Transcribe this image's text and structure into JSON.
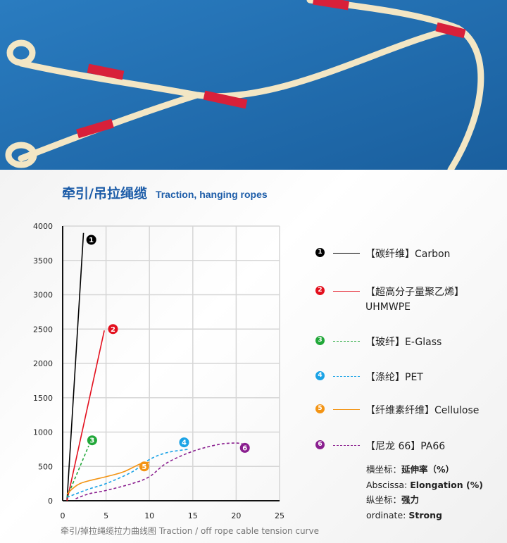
{
  "header": {
    "title_zh": "牵引/吊拉绳缆",
    "title_en": "Traction, hanging ropes"
  },
  "photo": {
    "background": "#1f6fb5",
    "rope": "#f3e6c4",
    "sleeve": "#d8203a"
  },
  "chart_data": {
    "type": "line",
    "title": "",
    "caption": "牵引/掉拉绳缆拉力曲线图  Traction / off rope cable tension curve",
    "xlabel": "",
    "ylabel": "",
    "xlim": [
      0,
      25
    ],
    "ylim": [
      0,
      4000
    ],
    "xticks": [
      "0",
      "5",
      "10",
      "15",
      "20",
      "25"
    ],
    "yticks": [
      "0",
      "500",
      "1000",
      "1500",
      "2000",
      "2500",
      "3000",
      "3500",
      "4000"
    ],
    "grid": true,
    "legend_placement": "right",
    "series": [
      {
        "id": "1",
        "name": "【碳纤维】Carbon",
        "color": "#000000",
        "dashed": false,
        "points": [
          [
            0.5,
            0
          ],
          [
            2.4,
            3900
          ]
        ],
        "label_at": [
          3.3,
          3800
        ]
      },
      {
        "id": "2",
        "name": "【超高分子量聚乙烯】",
        "name2": "UHMWPE",
        "color": "#e3101e",
        "dashed": false,
        "points": [
          [
            0.5,
            0
          ],
          [
            4.8,
            2480
          ]
        ],
        "label_at": [
          5.8,
          2500
        ]
      },
      {
        "id": "3",
        "name": "【玻纤】E-Glass",
        "color": "#22a83a",
        "dashed": true,
        "points": [
          [
            0.5,
            50
          ],
          [
            3,
            800
          ]
        ],
        "label_at": [
          3.4,
          880
        ]
      },
      {
        "id": "4",
        "name": "【涤纶】PET",
        "color": "#1ba3e6",
        "dashed": true,
        "points": [
          [
            0.5,
            50
          ],
          [
            3,
            170
          ],
          [
            5,
            250
          ],
          [
            8,
            420
          ],
          [
            10,
            600
          ],
          [
            12,
            700
          ],
          [
            14.5,
            750
          ]
        ],
        "label_at": [
          14,
          850
        ]
      },
      {
        "id": "5",
        "name": "【纤维素纤维】Cellulose",
        "color": "#f39414",
        "dashed": false,
        "points": [
          [
            0.5,
            100
          ],
          [
            2,
            250
          ],
          [
            5,
            350
          ],
          [
            7,
            420
          ],
          [
            9,
            540
          ],
          [
            10,
            560
          ]
        ],
        "label_at": [
          9.4,
          500
        ]
      },
      {
        "id": "6",
        "name": "【尼龙 66】PA66",
        "color": "#8a1f8f",
        "dashed": true,
        "points": [
          [
            1.5,
            30
          ],
          [
            3,
            100
          ],
          [
            5,
            150
          ],
          [
            8,
            250
          ],
          [
            10,
            350
          ],
          [
            12,
            550
          ],
          [
            15,
            720
          ],
          [
            18,
            820
          ],
          [
            20,
            840
          ],
          [
            21,
            820
          ]
        ],
        "label_at": [
          21,
          770
        ]
      }
    ]
  },
  "notes": [
    {
      "label": "横坐标：",
      "value": "延伸率（%）"
    },
    {
      "label": "Abscissa: ",
      "value": "Elongation (%)"
    },
    {
      "label": "纵坐标：",
      "value": "强力"
    },
    {
      "label": "ordinate: ",
      "value": "Strong"
    }
  ]
}
